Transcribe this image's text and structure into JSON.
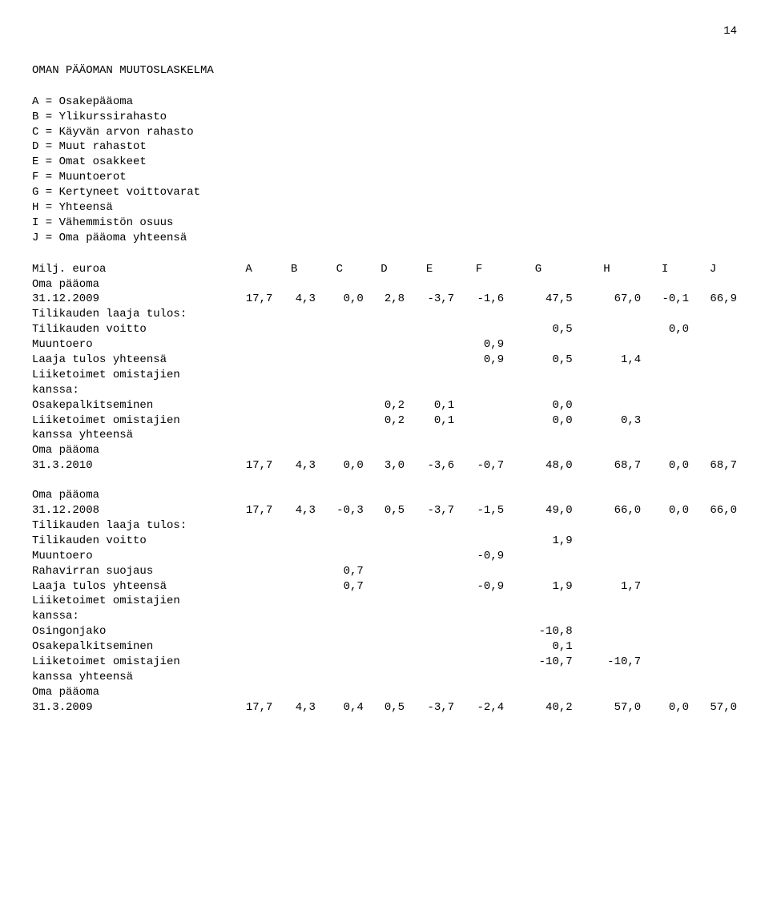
{
  "page_number": "14",
  "title": "OMAN PÄÄOMAN MUUTOSLASKELMA",
  "legend": [
    "A = Osakepääoma",
    "B = Ylikurssirahasto",
    "C = Käyvän arvon rahasto",
    "D = Muut rahastot",
    "E = Omat osakkeet",
    "F = Muuntoerot",
    "G = Kertyneet voittovarat",
    "H = Yhteensä",
    "I = Vähemmistön osuus",
    "J = Oma pääoma yhteensä"
  ],
  "header_row": {
    "label": "Milj. euroa",
    "cols": [
      "A",
      "B",
      "C",
      "D",
      "E",
      "F",
      "G",
      "H",
      "I",
      "J"
    ]
  },
  "block1": {
    "rows": [
      {
        "l": "Oma pääoma",
        "c": [
          "",
          "",
          "",
          "",
          "",
          "",
          "",
          "",
          "",
          ""
        ]
      },
      {
        "l": "31.12.2009",
        "c": [
          "17,7",
          "4,3",
          "0,0",
          "2,8",
          "-3,7",
          "-1,6",
          "47,5",
          "67,0",
          "-0,1",
          "66,9"
        ]
      },
      {
        "l": "Tilikauden laaja tulos:",
        "c": [
          "",
          "",
          "",
          "",
          "",
          "",
          "",
          "",
          "",
          ""
        ]
      },
      {
        "l": "Tilikauden voitto",
        "c": [
          "",
          "",
          "",
          "",
          "",
          "",
          "0,5",
          "",
          "0,0",
          ""
        ]
      },
      {
        "l": "Muuntoero",
        "c": [
          "",
          "",
          "",
          "",
          "",
          "0,9",
          "",
          "",
          "",
          ""
        ]
      },
      {
        "l": "Laaja tulos yhteensä",
        "c": [
          "",
          "",
          "",
          "",
          "",
          "0,9",
          "0,5",
          "1,4",
          "",
          ""
        ]
      },
      {
        "l": "Liiketoimet omistajien kanssa:",
        "c": [
          "",
          "",
          "",
          "",
          "",
          "",
          "",
          "",
          "",
          ""
        ]
      },
      {
        "l": "Osakepalkitseminen",
        "c": [
          "",
          "",
          "",
          "0,2",
          "0,1",
          "",
          "0,0",
          "",
          "",
          ""
        ]
      },
      {
        "l": "Liiketoimet omistajien kanssa yhteensä",
        "c": [
          "",
          "",
          "",
          "0,2",
          "0,1",
          "",
          "0,0",
          "0,3",
          "",
          ""
        ]
      },
      {
        "l": "Oma pääoma",
        "c": [
          "",
          "",
          "",
          "",
          "",
          "",
          "",
          "",
          "",
          ""
        ]
      },
      {
        "l": "31.3.2010",
        "c": [
          "17,7",
          "4,3",
          "0,0",
          "3,0",
          "-3,6",
          "-0,7",
          "48,0",
          "68,7",
          "0,0",
          "68,7"
        ]
      }
    ]
  },
  "block2": {
    "rows": [
      {
        "l": "Oma pääoma",
        "c": [
          "",
          "",
          "",
          "",
          "",
          "",
          "",
          "",
          "",
          ""
        ]
      },
      {
        "l": "31.12.2008",
        "c": [
          "17,7",
          "4,3",
          "-0,3",
          "0,5",
          "-3,7",
          "-1,5",
          "49,0",
          "66,0",
          "0,0",
          "66,0"
        ]
      },
      {
        "l": "Tilikauden laaja tulos:",
        "c": [
          "",
          "",
          "",
          "",
          "",
          "",
          "",
          "",
          "",
          ""
        ]
      },
      {
        "l": "Tilikauden voitto",
        "c": [
          "",
          "",
          "",
          "",
          "",
          "",
          "1,9",
          "",
          "",
          ""
        ]
      },
      {
        "l": "Muuntoero",
        "c": [
          "",
          "",
          "",
          "",
          "",
          "-0,9",
          "",
          "",
          "",
          ""
        ]
      },
      {
        "l": "Rahavirran suojaus",
        "c": [
          "",
          "",
          "0,7",
          "",
          "",
          "",
          "",
          "",
          "",
          ""
        ]
      },
      {
        "l": "Laaja tulos yhteensä",
        "c": [
          "",
          "",
          "0,7",
          "",
          "",
          "-0,9",
          "1,9",
          "1,7",
          "",
          ""
        ]
      },
      {
        "l": "Liiketoimet omistajien kanssa:",
        "c": [
          "",
          "",
          "",
          "",
          "",
          "",
          "",
          "",
          "",
          ""
        ]
      },
      {
        "l": "Osingonjako",
        "c": [
          "",
          "",
          "",
          "",
          "",
          "",
          "-10,8",
          "",
          "",
          ""
        ]
      },
      {
        "l": "Osakepalkitseminen",
        "c": [
          "",
          "",
          "",
          "",
          "",
          "",
          "0,1",
          "",
          "",
          ""
        ]
      },
      {
        "l": "Liiketoimet omistajien kanssa yhteensä",
        "c": [
          "",
          "",
          "",
          "",
          "",
          "",
          "-10,7",
          "-10,7",
          "",
          ""
        ]
      },
      {
        "l": "Oma pääoma",
        "c": [
          "",
          "",
          "",
          "",
          "",
          "",
          "",
          "",
          "",
          ""
        ]
      },
      {
        "l": "31.3.2009",
        "c": [
          "17,7",
          "4,3",
          "0,4",
          "0,5",
          "-3,7",
          "-2,4",
          "40,2",
          "57,0",
          "0,0",
          "57,0"
        ]
      }
    ]
  }
}
